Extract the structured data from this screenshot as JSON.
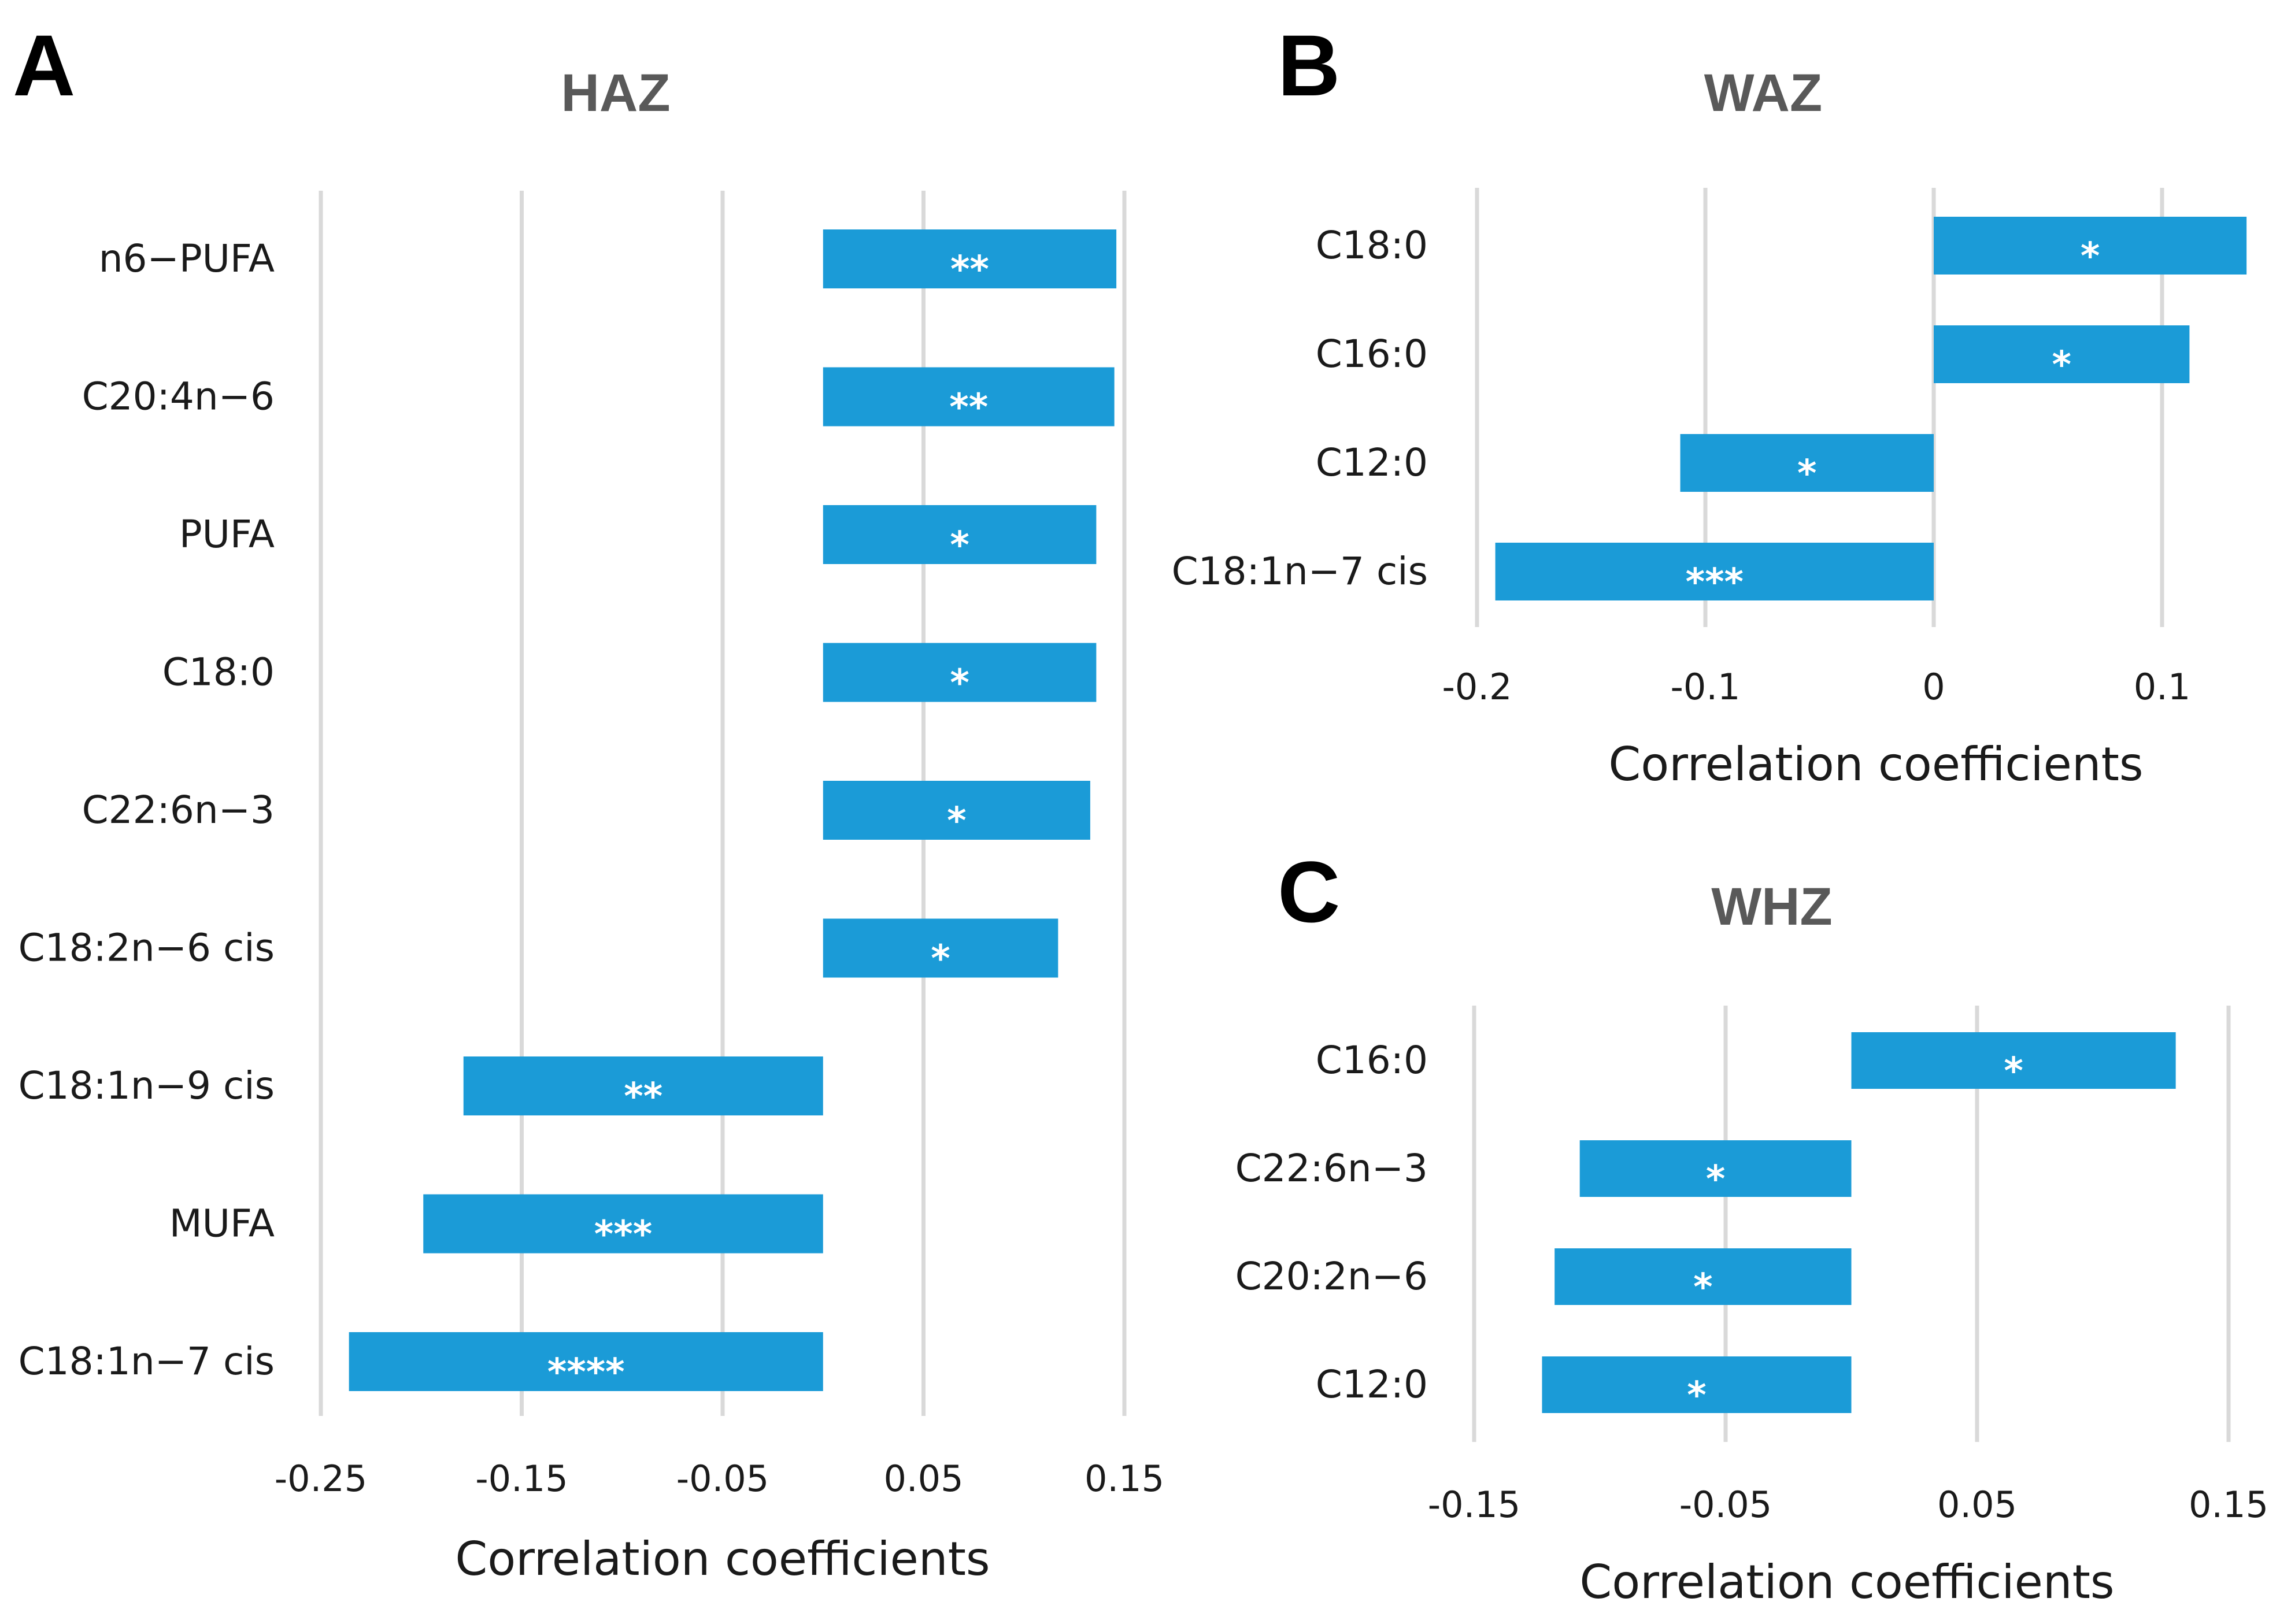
{
  "chart_data": [
    {
      "panel": "A",
      "type": "bar",
      "orientation": "horizontal",
      "title": "HAZ",
      "xlabel": "Correlation coefficients",
      "ylabel": "",
      "xlim": [
        -0.25,
        0.15
      ],
      "xticks": [
        -0.25,
        -0.15,
        -0.05,
        0.05,
        0.15
      ],
      "xtick_labels": [
        "-0.25",
        "-0.15",
        "-0.05",
        "0.05",
        "0.15"
      ],
      "grid": true,
      "categories": [
        "n6−PUFA",
        "C20:4n−6",
        "PUFA",
        "C18:0",
        "C22:6n−3",
        "C18:2n−6 cis",
        "C18:1n−9 cis",
        "MUFA",
        "C18:1n−7 cis"
      ],
      "values": [
        0.146,
        0.145,
        0.136,
        0.136,
        0.133,
        0.117,
        -0.179,
        -0.199,
        -0.236
      ],
      "significance": [
        "**",
        "**",
        "*",
        "*",
        "*",
        "*",
        "**",
        "***",
        "****"
      ],
      "color": "#1b9bd7"
    },
    {
      "panel": "B",
      "type": "bar",
      "orientation": "horizontal",
      "title": "WAZ",
      "xlabel": "Correlation coefficients",
      "ylabel": "",
      "xlim": [
        -0.2,
        0.13
      ],
      "xticks": [
        -0.2,
        -0.1,
        0,
        0.1
      ],
      "xtick_labels": [
        "-0.2",
        "-0.1",
        "0",
        "0.1"
      ],
      "grid": true,
      "categories": [
        "C18:0",
        "C16:0",
        "C12:0",
        "C18:1n−7 cis"
      ],
      "values": [
        0.137,
        0.112,
        -0.111,
        -0.192
      ],
      "significance": [
        "*",
        "*",
        "*",
        "***"
      ],
      "color": "#1b9bd7"
    },
    {
      "panel": "C",
      "type": "bar",
      "orientation": "horizontal",
      "title": "WHZ",
      "xlabel": "Correlation coefficients",
      "ylabel": "",
      "xlim": [
        -0.15,
        0.15
      ],
      "xticks": [
        -0.15,
        -0.05,
        0.05,
        0.15
      ],
      "xtick_labels": [
        "-0.15",
        "-0.05",
        "0.05",
        "0.15"
      ],
      "grid": true,
      "categories": [
        "C16:0",
        "C22:6n−3",
        "C20:2n−6",
        "C12:0"
      ],
      "values": [
        0.129,
        -0.108,
        -0.118,
        -0.123
      ],
      "significance": [
        "*",
        "*",
        "*",
        "*"
      ],
      "color": "#1b9bd7"
    }
  ]
}
